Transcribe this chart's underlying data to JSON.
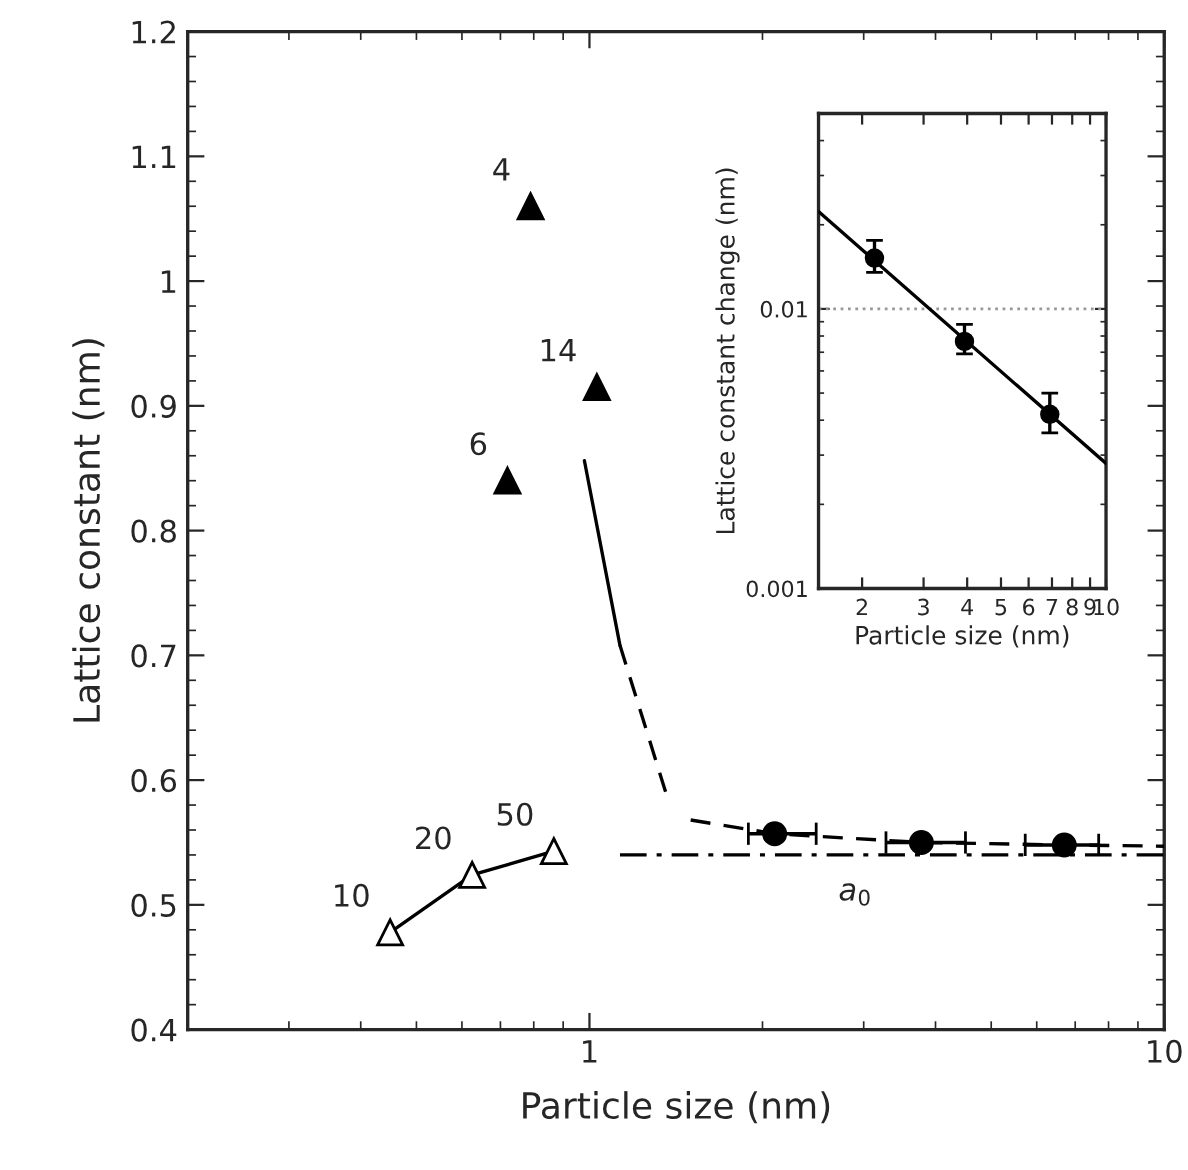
{
  "chart_data": [
    {
      "type": "scatter",
      "xlabel": "Particle size (nm)",
      "ylabel": "Lattice constant (nm)",
      "log": "x",
      "grid": false,
      "legend": false,
      "xlim": [
        0.2,
        10
      ],
      "xticks": [
        1,
        10
      ],
      "ylim": [
        0.4,
        1.2
      ],
      "yticks": [
        0.4,
        0.5,
        0.6,
        0.7,
        0.8,
        0.9,
        1,
        1.1,
        1.2
      ],
      "series": [
        {
          "color": "#000000",
          "marker": "triangle",
          "x": [
            0.79,
            1.03,
            0.72
          ],
          "values": [
            1.06,
            0.915,
            0.84
          ]
        },
        {
          "type": "line",
          "color": "#000000",
          "marker": "triangle",
          "line_style": "solid",
          "x": [
            0.45,
            0.625,
            0.867
          ],
          "values": [
            0.478,
            0.524,
            0.543
          ]
        },
        {
          "type": "line",
          "color": "#000000",
          "marker": "none",
          "line_style": "solid",
          "x": [
            0.98,
            1.13
          ],
          "values": [
            0.856,
            0.708
          ]
        },
        {
          "type": "line",
          "color": "#000000",
          "marker": "none",
          "line_style": "dashed",
          "x": [
            1.13,
            1.36
          ],
          "values": [
            0.708,
            0.589
          ]
        },
        {
          "type": "line",
          "color": "#000000",
          "marker": "none",
          "line_style": "dashed",
          "x": [
            1.5,
            2.1,
            3.78,
            6.7,
            10
          ],
          "values": [
            0.568,
            0.557,
            0.55,
            0.548,
            0.547
          ]
        },
        {
          "color": "#000000",
          "marker": "circle",
          "x": [
            2.1,
            3.78,
            6.7
          ],
          "values": [
            0.557,
            0.55,
            0.548
          ],
          "xerrors": [
            [
              1.89,
              2.48
            ],
            [
              3.28,
              4.51
            ],
            [
              5.73,
              7.69
            ]
          ]
        },
        {
          "type": "line",
          "color": "#000000",
          "marker": "none",
          "line_style": "dashdot",
          "x": [
            1.13,
            10
          ],
          "values": [
            0.54,
            0.54
          ]
        }
      ],
      "annotations": [
        {
          "text": "4",
          "x": 0.79,
          "y": 1.06
        },
        {
          "text": "14",
          "x": 1.03,
          "y": 0.915
        },
        {
          "text": "6",
          "x": 0.72,
          "y": 0.84
        },
        {
          "text": "10",
          "x": 0.45,
          "y": 0.478
        },
        {
          "text": "20",
          "x": 0.625,
          "y": 0.524
        },
        {
          "text": "50",
          "x": 0.867,
          "y": 0.543
        },
        {
          "text": "a$_{0}$",
          "x": 2.9,
          "y": 0.54
        }
      ]
    },
    {
      "type": "scatter",
      "xlabel": "Particle size (nm)",
      "ylabel": "Lattice constant change (nm)",
      "log": "xy",
      "grid": false,
      "legend": false,
      "xlim": [
        1.5,
        10
      ],
      "xticks": [
        2,
        3,
        4,
        5,
        6,
        7,
        8,
        9,
        10
      ],
      "ylim": [
        0.001,
        0.05
      ],
      "yticks": [
        0.001,
        0.01
      ],
      "series": [
        {
          "color": "#000000",
          "marker": "circle",
          "x": [
            2.17,
            3.93,
            6.9
          ],
          "values": [
            0.0152,
            0.00765,
            0.0042
          ],
          "errors": [
            [
              0.0135,
              0.0176
            ],
            [
              0.0069,
              0.0088
            ],
            [
              0.0036,
              0.005
            ]
          ]
        },
        {
          "type": "line",
          "color": "#000000",
          "marker": "none",
          "line_style": "solid",
          "x": [
            1.5,
            10
          ],
          "values": [
            0.0223,
            0.0028
          ]
        }
      ],
      "ref_lines": [
        {
          "axis": "y",
          "value": 0.01,
          "color": "#999999",
          "line_style": "dotted"
        }
      ]
    }
  ]
}
